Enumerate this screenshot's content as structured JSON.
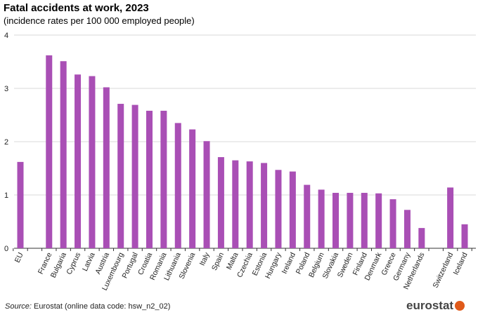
{
  "chart_data": {
    "type": "bar",
    "title": "Fatal accidents at work, 2023",
    "subtitle": "(incidence rates per 100 000 employed  people)",
    "xlabel": "",
    "ylabel": "",
    "ylim": [
      0,
      4
    ],
    "yticks": [
      "0",
      "1",
      "2",
      "3",
      "4"
    ],
    "grid": true,
    "bar_color": "#a94fb5",
    "categories": [
      "EU",
      "",
      "France",
      "Bulgaria",
      "Cyprus",
      "Latvia",
      "Austria",
      "Luxembourg",
      "Portugal",
      "Croatia",
      "Romania",
      "Lithuania",
      "Slovenia",
      "Italy",
      "Spain",
      "Malta",
      "Czechia",
      "Estonia",
      "Hungary",
      "Ireland",
      "Poland",
      "Belgium",
      "Slovakia",
      "Sweden",
      "Finland",
      "Denmark",
      "Greece",
      "Germany",
      "Netherlands",
      "",
      "Switzerland",
      "Iceland"
    ],
    "values": [
      1.62,
      null,
      3.62,
      3.51,
      3.26,
      3.23,
      3.02,
      2.71,
      2.69,
      2.58,
      2.58,
      2.35,
      2.23,
      2.01,
      1.71,
      1.65,
      1.63,
      1.6,
      1.47,
      1.44,
      1.19,
      1.1,
      1.04,
      1.04,
      1.04,
      1.03,
      0.92,
      0.72,
      0.38,
      null,
      1.14,
      0.45
    ]
  },
  "footer": {
    "source_label": "Source:",
    "source_text": " Eurostat (online data code: hsw_n2_02)",
    "logo": "eurostat"
  }
}
